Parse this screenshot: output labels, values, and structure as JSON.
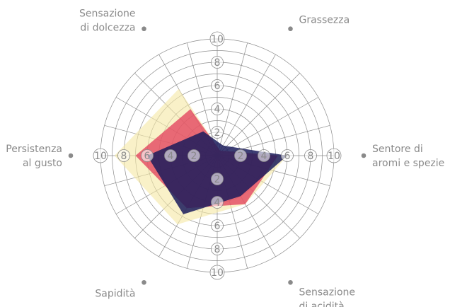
{
  "chart_data": {
    "type": "radar",
    "axes": [
      {
        "label_lines": [
          "Sentore di",
          "aromi e spezie"
        ]
      },
      {
        "label_lines": [
          "Grassezza"
        ]
      },
      {
        "label_lines": [
          "Sensazione",
          "di dolcezza"
        ]
      },
      {
        "label_lines": [
          "Persistenza",
          "al gusto"
        ]
      },
      {
        "label_lines": [
          "Sapidità"
        ]
      },
      {
        "label_lines": [
          "Sensazione",
          "di acidità"
        ]
      }
    ],
    "radial_ticks": [
      2,
      4,
      6,
      8,
      10
    ],
    "rmax": 10,
    "grid": true,
    "series": [
      {
        "values": [
          6,
          0.5,
          6.6,
          8.8,
          6.8,
          4.8
        ],
        "color": "#f5e8a3",
        "opacity": 0.6
      },
      {
        "values": [
          5.2,
          0.5,
          4.6,
          7,
          5.2,
          4.8
        ],
        "color": "#e23b5a",
        "opacity": 0.75
      },
      {
        "values": [
          6,
          1,
          2.4,
          6,
          5.8,
          4
        ],
        "color": "#1b1c5c",
        "opacity": 0.85
      }
    ]
  }
}
